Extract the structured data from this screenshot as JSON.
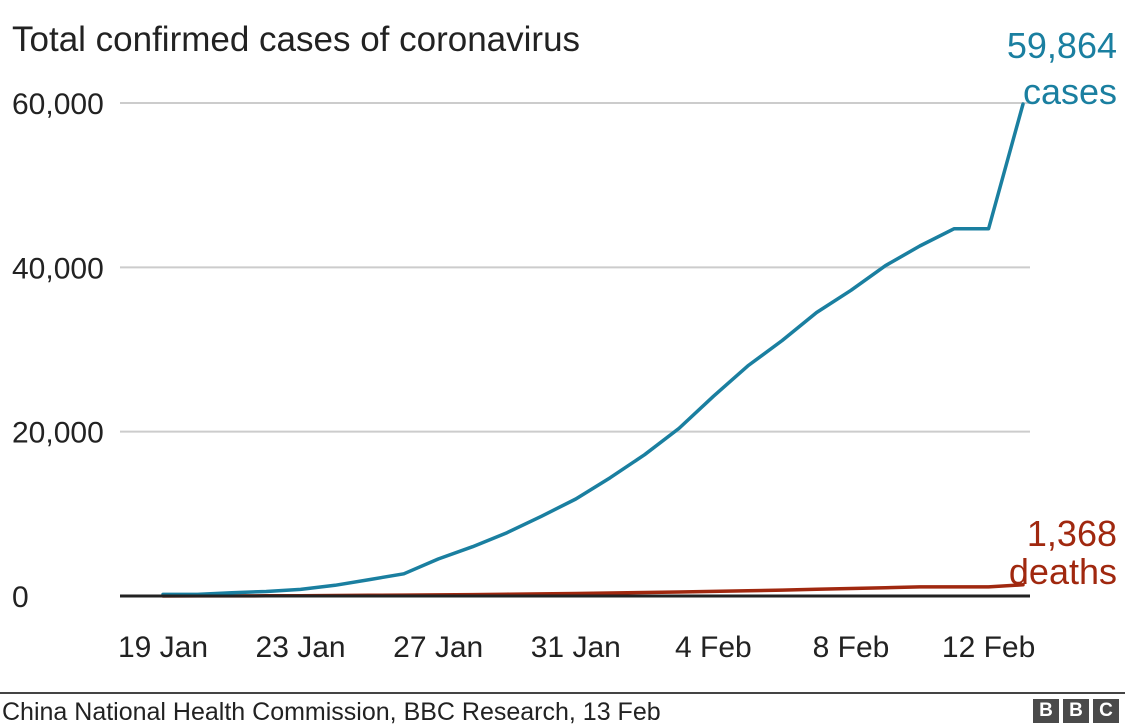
{
  "chart_data": {
    "type": "line",
    "title": "Total confirmed cases of coronavirus",
    "xlabel": "",
    "ylabel": "",
    "ylim": [
      0,
      60000
    ],
    "y_ticks": [
      0,
      20000,
      40000,
      60000
    ],
    "y_tick_labels": [
      "0",
      "20,000",
      "40,000",
      "60,000"
    ],
    "x_tick_labels": [
      "19 Jan",
      "23 Jan",
      "27 Jan",
      "31 Jan",
      "4 Feb",
      "8 Feb",
      "12 Feb"
    ],
    "x_tick_days": [
      0,
      4,
      8,
      12,
      16,
      20,
      24
    ],
    "grid": true,
    "series": [
      {
        "name": "cases",
        "color": "#1a7fa0",
        "x": [
          0,
          1,
          2,
          3,
          4,
          5,
          6,
          7,
          8,
          9,
          10,
          11,
          12,
          13,
          14,
          15,
          16,
          17,
          18,
          19,
          20,
          21,
          22,
          23,
          24,
          25
        ],
        "values": [
          200,
          200,
          400,
          550,
          800,
          1300,
          2000,
          2700,
          4500,
          6000,
          7700,
          9700,
          11800,
          14400,
          17200,
          20400,
          24300,
          28000,
          31100,
          34500,
          37200,
          40200,
          42600,
          44700,
          44700,
          59864
        ],
        "end_value_label": "59,864",
        "end_unit_label": "cases"
      },
      {
        "name": "deaths",
        "color": "#a0280f",
        "x": [
          0,
          1,
          2,
          3,
          4,
          5,
          6,
          7,
          8,
          9,
          10,
          11,
          12,
          13,
          14,
          15,
          16,
          17,
          18,
          19,
          20,
          21,
          22,
          23,
          24,
          25
        ],
        "values": [
          4,
          9,
          17,
          25,
          41,
          56,
          80,
          106,
          132,
          170,
          213,
          259,
          304,
          361,
          425,
          490,
          563,
          636,
          722,
          811,
          908,
          1016,
          1113,
          1113,
          1113,
          1368
        ],
        "end_value_label": "1,368",
        "end_unit_label": "deaths"
      }
    ]
  },
  "footer": {
    "source": "China National Health Commission, BBC Research, 13 Feb",
    "logo_letters": [
      "B",
      "B",
      "C"
    ]
  }
}
